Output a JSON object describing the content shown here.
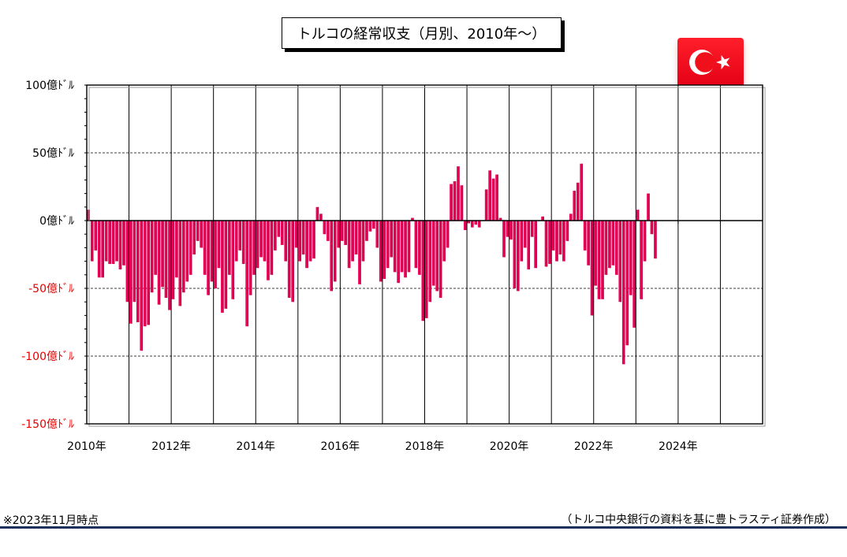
{
  "colors": {
    "bar": "#f0005a",
    "bar_side": "#b00040",
    "negative_label": "#e60000",
    "positive_label": "#000000"
  },
  "icons": {
    "flag": "turkey-flag-icon"
  },
  "footer": {
    "note": "※2023年11月時点",
    "source": "（トルコ中央銀行の資料を基に豊トラスティ証券作成）"
  },
  "chart_data": {
    "type": "bar",
    "title": "トルコの経常収支（月別、2010年～）",
    "ylim": [
      -150,
      100
    ],
    "y_ticks": [
      {
        "value": 100,
        "label": "100億ﾄﾞﾙ"
      },
      {
        "value": 50,
        "label": "50億ﾄﾞﾙ"
      },
      {
        "value": 0,
        "label": "0億ﾄﾞﾙ"
      },
      {
        "value": -50,
        "label": "-50億ﾄﾞﾙ"
      },
      {
        "value": -100,
        "label": "-100億ﾄﾞﾙ"
      },
      {
        "value": -150,
        "label": "-150億ﾄﾞﾙ"
      }
    ],
    "x_range": [
      "2010-01",
      "2025-12"
    ],
    "x_ticks": [
      "2010年",
      "2012年",
      "2014年",
      "2016年",
      "2018年",
      "2020年",
      "2022年",
      "2024年"
    ],
    "grid": {
      "vertical": "yearly",
      "horizontal_dashed": [
        50,
        -50,
        -100
      ]
    },
    "series": [
      {
        "values": [
          8,
          -30,
          -22,
          -42,
          -42,
          -30,
          -32,
          -32,
          -30,
          -36,
          -33,
          -60,
          -76,
          -60,
          -75,
          -96,
          -78,
          -77,
          -53,
          -40,
          -62,
          -49,
          -57,
          -66,
          -58,
          -42,
          -63,
          -53,
          -45,
          -40,
          -25,
          -15,
          -20,
          -40,
          -55,
          -45,
          -50,
          -35,
          -68,
          -65,
          -40,
          -58,
          -30,
          -22,
          -32,
          -78,
          -55,
          -40,
          -35,
          -27,
          -30,
          -44,
          -40,
          -22,
          -12,
          -18,
          -30,
          -57,
          -60,
          -20,
          -30,
          -25,
          -35,
          -30,
          -28,
          10,
          5,
          -10,
          -15,
          -52,
          -45,
          -20,
          -15,
          -18,
          -35,
          -30,
          -25,
          -47,
          -30,
          -15,
          -8,
          -6,
          -20,
          -45,
          -43,
          -35,
          -27,
          -38,
          -46,
          -38,
          -42,
          -38,
          2,
          -35,
          -40,
          -74,
          -72,
          -60,
          -48,
          -52,
          -57,
          -30,
          -20,
          27,
          29,
          40,
          26,
          -7,
          -2,
          -5,
          -3,
          -5,
          0,
          23,
          37,
          31,
          34,
          2,
          -27,
          -12,
          -14,
          -50,
          -52,
          -30,
          -20,
          -36,
          -12,
          -35,
          0,
          3,
          -34,
          -32,
          -22,
          -30,
          -25,
          -30,
          -15,
          5,
          22,
          28,
          42,
          -22,
          -33,
          -70,
          -48,
          -58,
          -58,
          -40,
          -35,
          -33,
          -40,
          -60,
          -106,
          -92,
          -55,
          -79,
          8,
          -58,
          -30,
          20,
          -10,
          -28
        ]
      }
    ]
  }
}
